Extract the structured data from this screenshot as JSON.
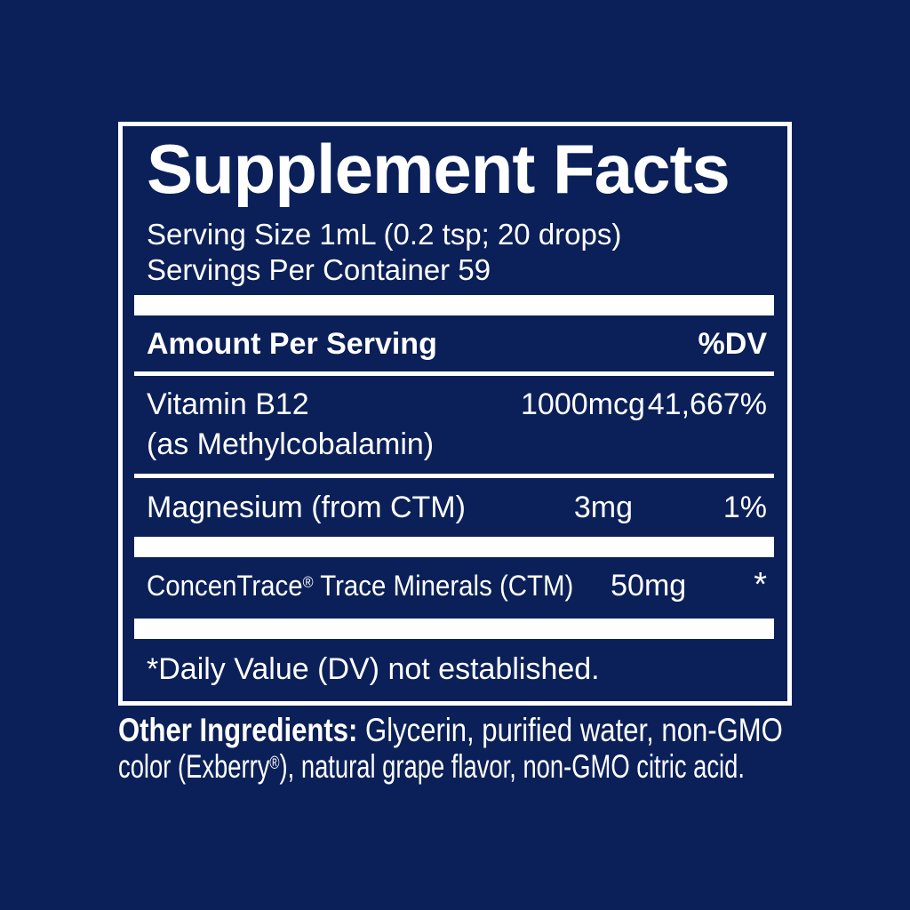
{
  "colors": {
    "background": "#0B2058",
    "text": "#ffffff"
  },
  "supplement_facts": {
    "title": "Supplement Facts",
    "serving_size": "Serving Size 1mL (0.2 tsp; 20 drops)",
    "servings_per_container": "Servings Per Container 59",
    "column_headers": {
      "amount": "Amount Per Serving",
      "dv": "%DV"
    },
    "rows": [
      {
        "name": "Vitamin B12",
        "name_detail": "(as Methylcobalamin)",
        "amount": "1000mcg",
        "dv": "41,667%"
      },
      {
        "name": "Magnesium (from CTM)",
        "amount": "3mg",
        "dv": "1%"
      },
      {
        "name_brand": "ConcenTrace",
        "name_reg_mark": "®",
        "name_rest": " Trace Minerals (CTM)",
        "amount": "50mg",
        "dv": "*"
      }
    ],
    "footnote": "*Daily Value (DV) not established."
  },
  "other_ingredients": {
    "label": "Other Ingredients:",
    "line1_rest": " Glycerin, purified water, non-GMO",
    "line2_pre": "color (Exberry",
    "line2_reg_mark": "®",
    "line2_post": "), natural grape flavor, non-GMO citric acid."
  }
}
